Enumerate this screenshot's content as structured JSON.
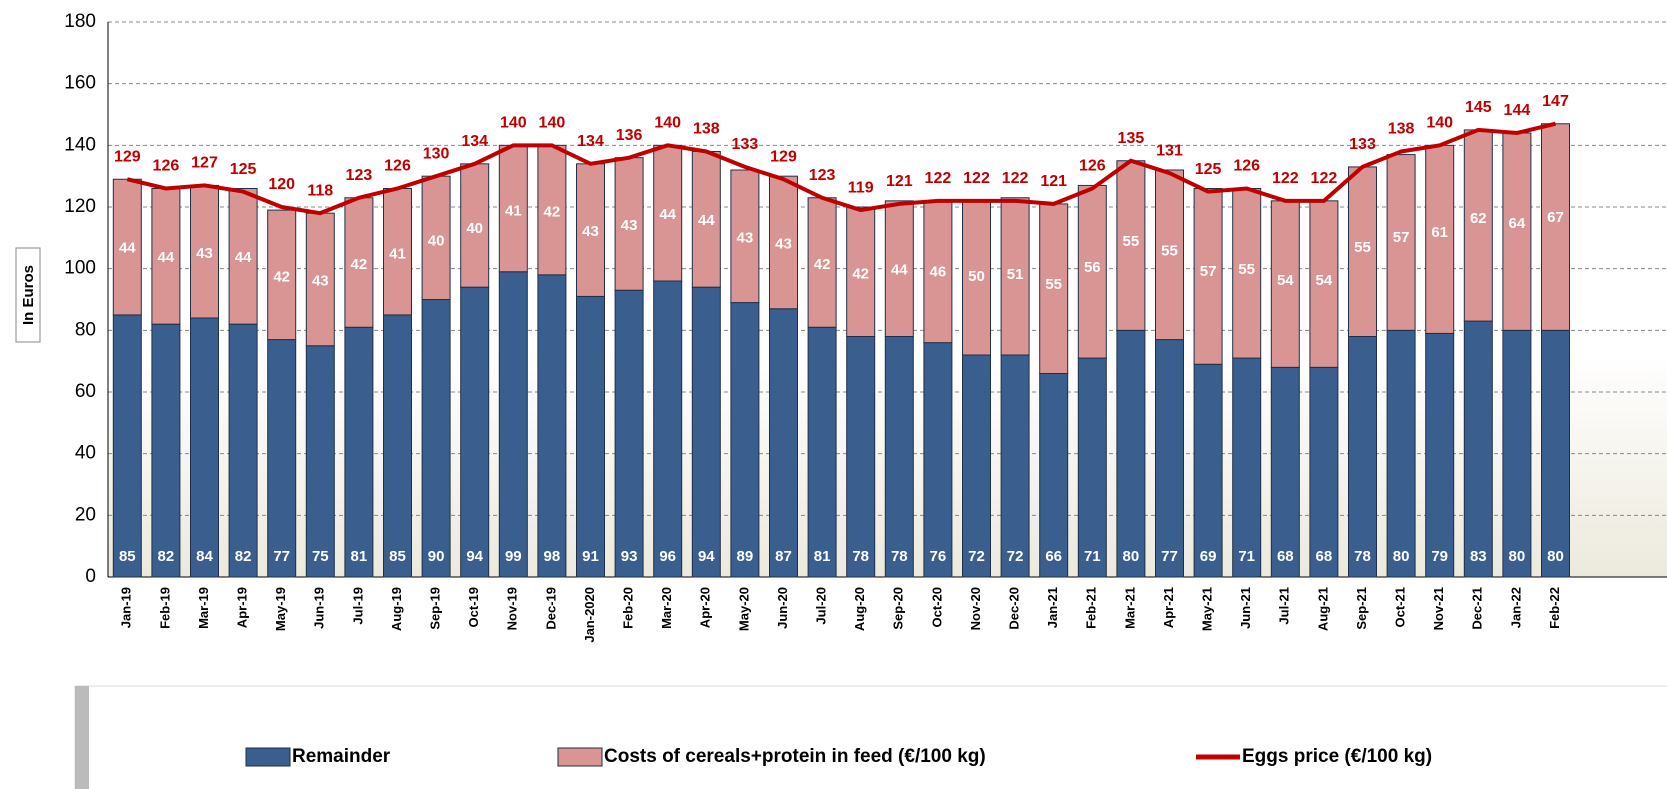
{
  "chart_data": {
    "type": "bar",
    "stacked": true,
    "y_axis_label": "In Euros",
    "categories": [
      "Jan-19",
      "Feb-19",
      "Mar-19",
      "Apr-19",
      "May-19",
      "Jun-19",
      "Jul-19",
      "Aug-19",
      "Sep-19",
      "Oct-19",
      "Nov-19",
      "Dec-19",
      "Jan-2020",
      "Feb-20",
      "Mar-20",
      "Apr-20",
      "May-20",
      "Jun-20",
      "Jul-20",
      "Aug-20",
      "Sep-20",
      "Oct-20",
      "Nov-20",
      "Dec-20",
      "Jan-21",
      "Feb-21",
      "Mar-21",
      "Apr-21",
      "May-21",
      "Jun-21",
      "Jul-21",
      "Aug-21",
      "Sep-21",
      "Oct-21",
      "Nov-21",
      "Dec-21",
      "Jan-22",
      "Feb-22"
    ],
    "series": [
      {
        "name": "Remainder",
        "type": "bar",
        "color": "#3a5f8f",
        "label_color": "#ffffff",
        "values": [
          85,
          82,
          84,
          82,
          77,
          75,
          81,
          85,
          90,
          94,
          99,
          98,
          91,
          93,
          96,
          94,
          89,
          87,
          81,
          78,
          78,
          76,
          72,
          72,
          66,
          71,
          80,
          77,
          69,
          71,
          68,
          68,
          78,
          80,
          79,
          83,
          80,
          80
        ]
      },
      {
        "name": "Costs of cereals+protein in feed (€/100 kg)",
        "type": "bar",
        "color": "#d99594",
        "label_color": "#ffffff",
        "values": [
          44,
          44,
          43,
          44,
          42,
          43,
          42,
          41,
          40,
          40,
          41,
          42,
          43,
          43,
          44,
          44,
          43,
          43,
          42,
          42,
          44,
          46,
          50,
          51,
          55,
          56,
          55,
          55,
          57,
          55,
          54,
          54,
          55,
          57,
          61,
          62,
          64,
          67
        ]
      },
      {
        "name": "Eggs price (€/100 kg)",
        "type": "line",
        "color": "#c00000",
        "label_color": "#c00000",
        "values": [
          129,
          126,
          127,
          125,
          120,
          118,
          123,
          126,
          130,
          134,
          140,
          140,
          134,
          136,
          140,
          138,
          133,
          129,
          123,
          119,
          121,
          122,
          122,
          122,
          121,
          126,
          135,
          131,
          125,
          126,
          122,
          122,
          133,
          138,
          140,
          145,
          144,
          147
        ]
      }
    ],
    "ylim": [
      0,
      180
    ],
    "yticks": [
      0,
      20,
      40,
      60,
      80,
      100,
      120,
      140,
      160,
      180
    ],
    "grid": true
  }
}
